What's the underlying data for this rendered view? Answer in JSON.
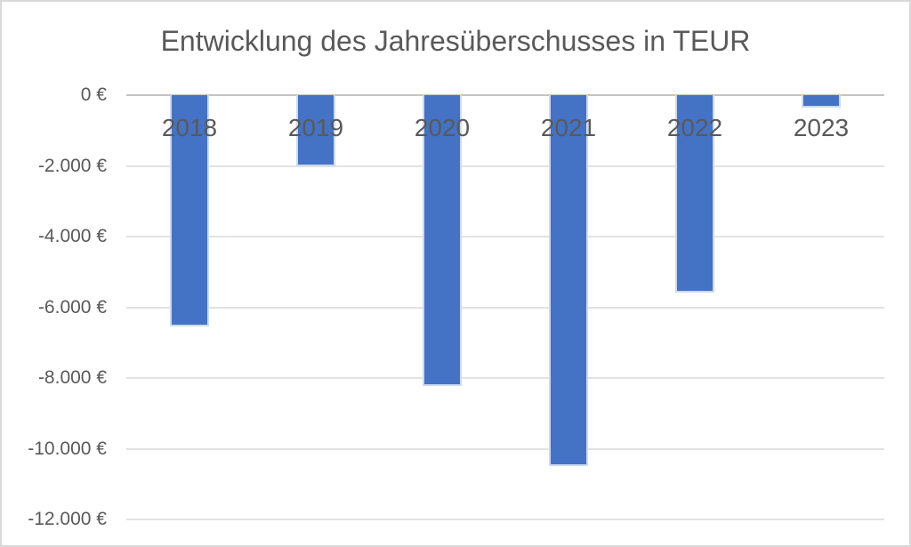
{
  "window": {
    "background": "#ffffff",
    "frame_border_color": "#d9d9d9"
  },
  "chart_data": {
    "type": "bar",
    "title": "Entwicklung des Jahresüberschusses in TEUR",
    "categories": [
      "2018",
      "2019",
      "2020",
      "2021",
      "2022",
      "2023"
    ],
    "values": [
      -6550,
      -2000,
      -8230,
      -10500,
      -5580,
      -350
    ],
    "value_unit": "EUR",
    "xlabel": "",
    "ylabel": "",
    "ylim": [
      0,
      -12000
    ],
    "ytick_step": 2000,
    "yticks": [
      "0 €",
      "-2.000 €",
      "-4.000 €",
      "-6.000 €",
      "-8.000 €",
      "-10.000 €",
      "-12.000 €"
    ],
    "grid": true,
    "legend": false,
    "bar_color": "#4472C4",
    "bar_edge_color": "#ccdaf0",
    "text_color": "#595959",
    "gridline_color": "#e2e2e2",
    "axis_line_color": "#c3c3c3"
  }
}
